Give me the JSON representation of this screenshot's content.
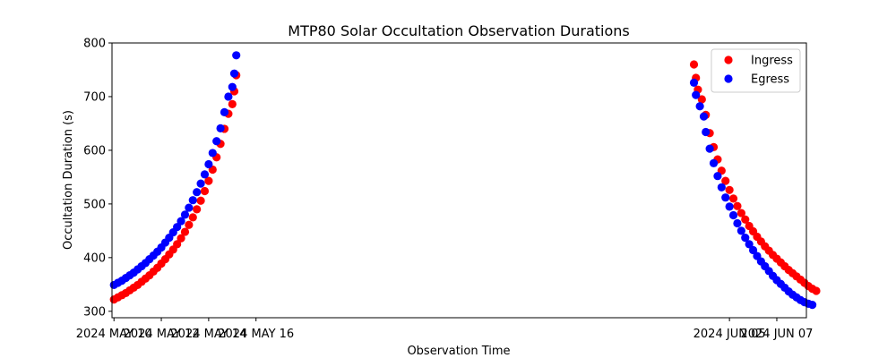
{
  "chart_data": {
    "type": "scatter",
    "title": "MTP80 Solar Occultation Observation Durations",
    "xlabel": "Observation Time",
    "ylabel": "Occultation Duration (s)",
    "ylim": [
      288,
      800
    ],
    "xlim": [
      "2024-05-09T22:00",
      "2024-06-08T06:00"
    ],
    "y_ticks": [
      300,
      400,
      500,
      600,
      700,
      800
    ],
    "x_ticks": [
      {
        "date": "2024-05-10",
        "label": "2024 MAY 10"
      },
      {
        "date": "2024-05-12",
        "label": "2024 MAY 12"
      },
      {
        "date": "2024-05-14",
        "label": "2024 MAY 14"
      },
      {
        "date": "2024-05-16",
        "label": "2024 MAY 16"
      },
      {
        "date": "2024-06-05",
        "label": "2024 JUN 05"
      },
      {
        "date": "2024-06-07",
        "label": "2024 JUN 07"
      }
    ],
    "legend": {
      "placement": "top-right"
    },
    "series": [
      {
        "name": "Ingress",
        "color": "#ff0000",
        "points": [
          [
            "2024-05-10T00:00",
            322
          ],
          [
            "2024-05-10T04:00",
            326
          ],
          [
            "2024-05-10T08:00",
            330
          ],
          [
            "2024-05-10T12:00",
            334
          ],
          [
            "2024-05-10T16:00",
            339
          ],
          [
            "2024-05-10T20:00",
            344
          ],
          [
            "2024-05-11T00:00",
            349
          ],
          [
            "2024-05-11T04:00",
            355
          ],
          [
            "2024-05-11T08:00",
            361
          ],
          [
            "2024-05-11T12:00",
            367
          ],
          [
            "2024-05-11T16:00",
            374
          ],
          [
            "2024-05-11T20:00",
            381
          ],
          [
            "2024-05-12T00:00",
            389
          ],
          [
            "2024-05-12T04:00",
            397
          ],
          [
            "2024-05-12T08:00",
            406
          ],
          [
            "2024-05-12T12:00",
            415
          ],
          [
            "2024-05-12T16:00",
            425
          ],
          [
            "2024-05-12T20:00",
            436
          ],
          [
            "2024-05-13T00:00",
            448
          ],
          [
            "2024-05-13T04:00",
            461
          ],
          [
            "2024-05-13T08:00",
            475
          ],
          [
            "2024-05-13T12:00",
            490
          ],
          [
            "2024-05-13T16:00",
            506
          ],
          [
            "2024-05-13T20:00",
            524
          ],
          [
            "2024-05-14T00:00",
            543
          ],
          [
            "2024-05-14T04:00",
            564
          ],
          [
            "2024-05-14T08:00",
            587
          ],
          [
            "2024-05-14T12:00",
            612
          ],
          [
            "2024-05-14T16:00",
            640
          ],
          [
            "2024-05-14T20:00",
            668
          ],
          [
            "2024-05-15T00:00",
            686
          ],
          [
            "2024-05-15T02:00",
            710
          ],
          [
            "2024-05-15T04:00",
            740
          ],
          [
            "2024-06-03T12:00",
            760
          ],
          [
            "2024-06-03T14:00",
            735
          ],
          [
            "2024-06-03T16:00",
            713
          ],
          [
            "2024-06-03T20:00",
            695
          ],
          [
            "2024-06-04T00:00",
            666
          ],
          [
            "2024-06-04T04:00",
            632
          ],
          [
            "2024-06-04T08:00",
            606
          ],
          [
            "2024-06-04T12:00",
            583
          ],
          [
            "2024-06-04T16:00",
            562
          ],
          [
            "2024-06-04T20:00",
            543
          ],
          [
            "2024-06-05T00:00",
            526
          ],
          [
            "2024-06-05T04:00",
            510
          ],
          [
            "2024-06-05T08:00",
            496
          ],
          [
            "2024-06-05T12:00",
            483
          ],
          [
            "2024-06-05T16:00",
            471
          ],
          [
            "2024-06-05T20:00",
            459
          ],
          [
            "2024-06-06T00:00",
            449
          ],
          [
            "2024-06-06T04:00",
            439
          ],
          [
            "2024-06-06T08:00",
            430
          ],
          [
            "2024-06-06T12:00",
            421
          ],
          [
            "2024-06-06T16:00",
            413
          ],
          [
            "2024-06-06T20:00",
            405
          ],
          [
            "2024-06-07T00:00",
            398
          ],
          [
            "2024-06-07T04:00",
            391
          ],
          [
            "2024-06-07T08:00",
            384
          ],
          [
            "2024-06-07T12:00",
            377
          ],
          [
            "2024-06-07T16:00",
            371
          ],
          [
            "2024-06-07T20:00",
            365
          ],
          [
            "2024-06-08T00:00",
            359
          ],
          [
            "2024-06-08T04:00",
            353
          ],
          [
            "2024-06-08T08:00",
            347
          ],
          [
            "2024-06-08T12:00",
            342
          ],
          [
            "2024-06-08T16:00",
            338
          ]
        ]
      },
      {
        "name": "Egress",
        "color": "#0000ff",
        "points": [
          [
            "2024-05-10T00:00",
            349
          ],
          [
            "2024-05-10T04:00",
            353
          ],
          [
            "2024-05-10T08:00",
            357
          ],
          [
            "2024-05-10T12:00",
            362
          ],
          [
            "2024-05-10T16:00",
            367
          ],
          [
            "2024-05-10T20:00",
            372
          ],
          [
            "2024-05-11T00:00",
            378
          ],
          [
            "2024-05-11T04:00",
            384
          ],
          [
            "2024-05-11T08:00",
            390
          ],
          [
            "2024-05-11T12:00",
            397
          ],
          [
            "2024-05-11T16:00",
            404
          ],
          [
            "2024-05-11T20:00",
            411
          ],
          [
            "2024-05-12T00:00",
            419
          ],
          [
            "2024-05-12T04:00",
            428
          ],
          [
            "2024-05-12T08:00",
            437
          ],
          [
            "2024-05-12T12:00",
            447
          ],
          [
            "2024-05-12T16:00",
            457
          ],
          [
            "2024-05-12T20:00",
            468
          ],
          [
            "2024-05-13T00:00",
            480
          ],
          [
            "2024-05-13T04:00",
            493
          ],
          [
            "2024-05-13T08:00",
            507
          ],
          [
            "2024-05-13T12:00",
            522
          ],
          [
            "2024-05-13T16:00",
            538
          ],
          [
            "2024-05-13T20:00",
            555
          ],
          [
            "2024-05-14T00:00",
            574
          ],
          [
            "2024-05-14T04:00",
            595
          ],
          [
            "2024-05-14T08:00",
            617
          ],
          [
            "2024-05-14T12:00",
            641
          ],
          [
            "2024-05-14T16:00",
            671
          ],
          [
            "2024-05-14T20:00",
            700
          ],
          [
            "2024-05-15T00:00",
            718
          ],
          [
            "2024-05-15T02:00",
            743
          ],
          [
            "2024-05-15T04:00",
            777
          ],
          [
            "2024-06-03T12:00",
            726
          ],
          [
            "2024-06-03T14:00",
            703
          ],
          [
            "2024-06-03T18:00",
            682
          ],
          [
            "2024-06-03T22:00",
            663
          ],
          [
            "2024-06-04T00:00",
            634
          ],
          [
            "2024-06-04T04:00",
            603
          ],
          [
            "2024-06-04T08:00",
            576
          ],
          [
            "2024-06-04T12:00",
            552
          ],
          [
            "2024-06-04T16:00",
            531
          ],
          [
            "2024-06-04T20:00",
            512
          ],
          [
            "2024-06-05T00:00",
            495
          ],
          [
            "2024-06-05T04:00",
            479
          ],
          [
            "2024-06-05T08:00",
            464
          ],
          [
            "2024-06-05T12:00",
            450
          ],
          [
            "2024-06-05T16:00",
            437
          ],
          [
            "2024-06-05T20:00",
            425
          ],
          [
            "2024-06-06T00:00",
            414
          ],
          [
            "2024-06-06T04:00",
            403
          ],
          [
            "2024-06-06T08:00",
            393
          ],
          [
            "2024-06-06T12:00",
            384
          ],
          [
            "2024-06-06T16:00",
            375
          ],
          [
            "2024-06-06T20:00",
            366
          ],
          [
            "2024-06-07T00:00",
            358
          ],
          [
            "2024-06-07T04:00",
            351
          ],
          [
            "2024-06-07T08:00",
            344
          ],
          [
            "2024-06-07T12:00",
            337
          ],
          [
            "2024-06-07T16:00",
            331
          ],
          [
            "2024-06-07T20:00",
            326
          ],
          [
            "2024-06-08T00:00",
            321
          ],
          [
            "2024-06-08T04:00",
            317
          ],
          [
            "2024-06-08T08:00",
            314
          ],
          [
            "2024-06-08T12:00",
            312
          ]
        ]
      }
    ]
  }
}
